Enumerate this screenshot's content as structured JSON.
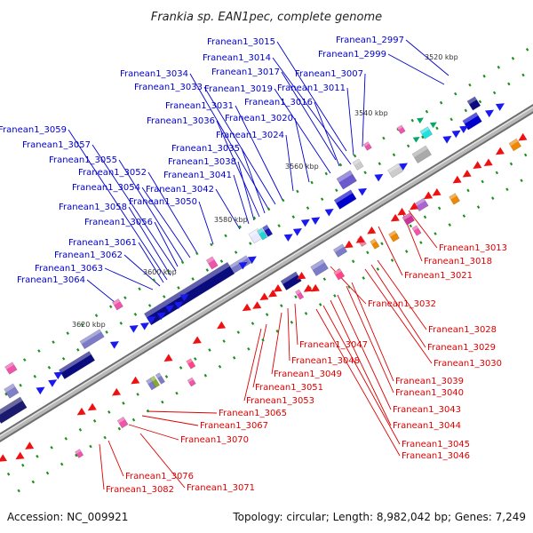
{
  "header": {
    "title": "Frankia sp. EAN1pec, complete genome"
  },
  "footer": {
    "accession": "Accession: NC_009921",
    "summary": "Topology: circular; Length: 8,982,042 bp; Genes: 7,249"
  },
  "colors": {
    "forward_label": "#0000cc",
    "reverse_label": "#dd0000",
    "backbone": "#8a8a8a"
  },
  "scale": [
    "3520 kbp",
    "3540 kbp",
    "3560 kbp",
    "3580 kbp",
    "3600 kbp",
    "3620 kbp"
  ],
  "forward_genes": [
    "Franean1_2997",
    "Franean1_2999",
    "Franean1_3007",
    "Franean1_3011",
    "Franean1_3014",
    "Franean1_3015",
    "Franean1_3016",
    "Franean1_3017",
    "Franean1_3019",
    "Franean1_3020",
    "Franean1_3024",
    "Franean1_3031",
    "Franean1_3033",
    "Franean1_3034",
    "Franean1_3035",
    "Franean1_3036",
    "Franean1_3038",
    "Franean1_3041",
    "Franean1_3042",
    "Franean1_3050",
    "Franean1_3052",
    "Franean1_3054",
    "Franean1_3055",
    "Franean1_3056",
    "Franean1_3057",
    "Franean1_3058",
    "Franean1_3059",
    "Franean1_3061",
    "Franean1_3062",
    "Franean1_3063",
    "Franean1_3064"
  ],
  "reverse_genes": [
    "Franean1_3013",
    "Franean1_3018",
    "Franean1_3021",
    "Franean1_3028",
    "Franean1_3029",
    "Franean1_3030",
    "Franean1_3032",
    "Franean1_3039",
    "Franean1_3040",
    "Franean1_3043",
    "Franean1_3044",
    "Franean1_3045",
    "Franean1_3046",
    "Franean1_3047",
    "Franean1_3048",
    "Franean1_3049",
    "Franean1_3051",
    "Franean1_3053",
    "Franean1_3065",
    "Franean1_3067",
    "Franean1_3070",
    "Franean1_3071",
    "Franean1_3076",
    "Franean1_3082"
  ]
}
